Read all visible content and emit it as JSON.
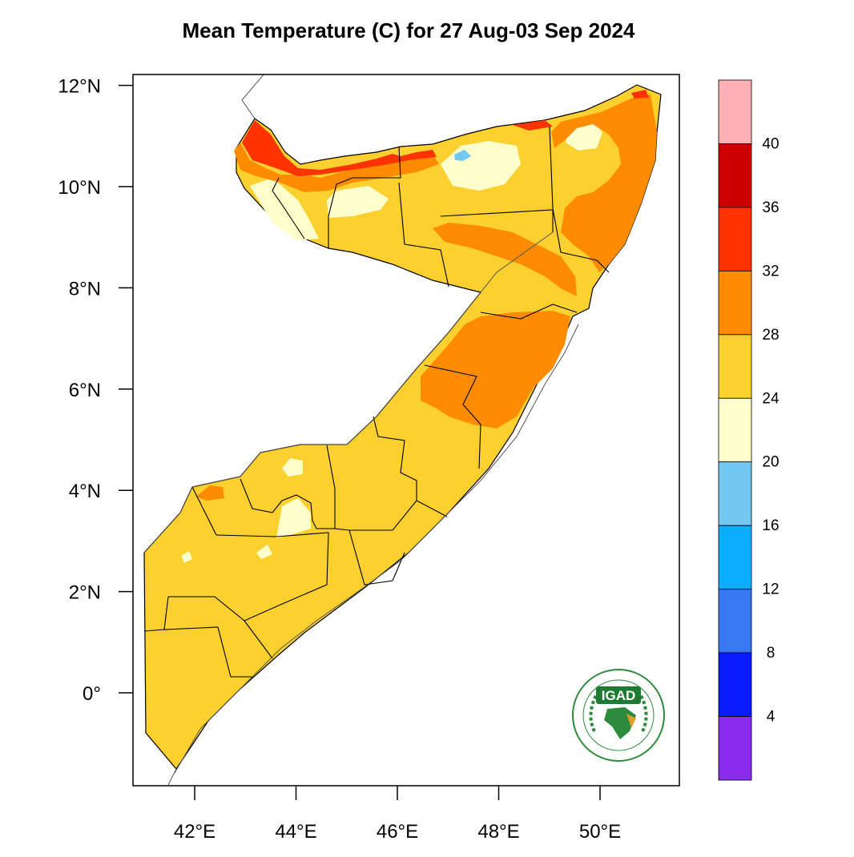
{
  "title": "Mean Temperature (C) for 27 Aug-03 Sep 2024",
  "y_ticks": [
    {
      "value": 12,
      "label": "12°N"
    },
    {
      "value": 10,
      "label": "10°N"
    },
    {
      "value": 8,
      "label": "8°N"
    },
    {
      "value": 6,
      "label": "6°N"
    },
    {
      "value": 4,
      "label": "4°N"
    },
    {
      "value": 2,
      "label": "2°N"
    },
    {
      "value": 0,
      "label": "0°"
    }
  ],
  "x_ticks": [
    {
      "value": 42,
      "label": "42°E"
    },
    {
      "value": 44,
      "label": "44°E"
    },
    {
      "value": 46,
      "label": "46°E"
    },
    {
      "value": 48,
      "label": "48°E"
    },
    {
      "value": 50,
      "label": "50°E"
    }
  ],
  "lon_range": [
    40.9,
    52.2
  ],
  "lat_range": [
    -1.8,
    12.2
  ],
  "colorbar": {
    "colors_top_to_bottom": [
      "#ffb0b4",
      "#cc0000",
      "#ff3300",
      "#ff8c00",
      "#fcd02f",
      "#ffffcc",
      "#73c8f2",
      "#0aaeff",
      "#3878f0",
      "#0a1cff",
      "#8a2cee"
    ],
    "labels": [
      "40",
      "36",
      "32",
      "28",
      "24",
      "20",
      "16",
      "12",
      "8",
      "4"
    ]
  },
  "legend_scale": {
    "bands": [
      {
        "range": "<24",
        "color": "#ffffcc"
      },
      {
        "range": "24-28",
        "color": "#fcd02f"
      },
      {
        "range": "28-32",
        "color": "#ff8c00"
      },
      {
        "range": "32-36",
        "color": "#ff3300"
      },
      {
        "range": "36-40",
        "color": "#cc0000"
      }
    ]
  },
  "logo": {
    "text": "IGAD",
    "colors": {
      "ring": "#2e8b3d",
      "text": "#1f7a34",
      "map": "#d9a12a"
    }
  }
}
